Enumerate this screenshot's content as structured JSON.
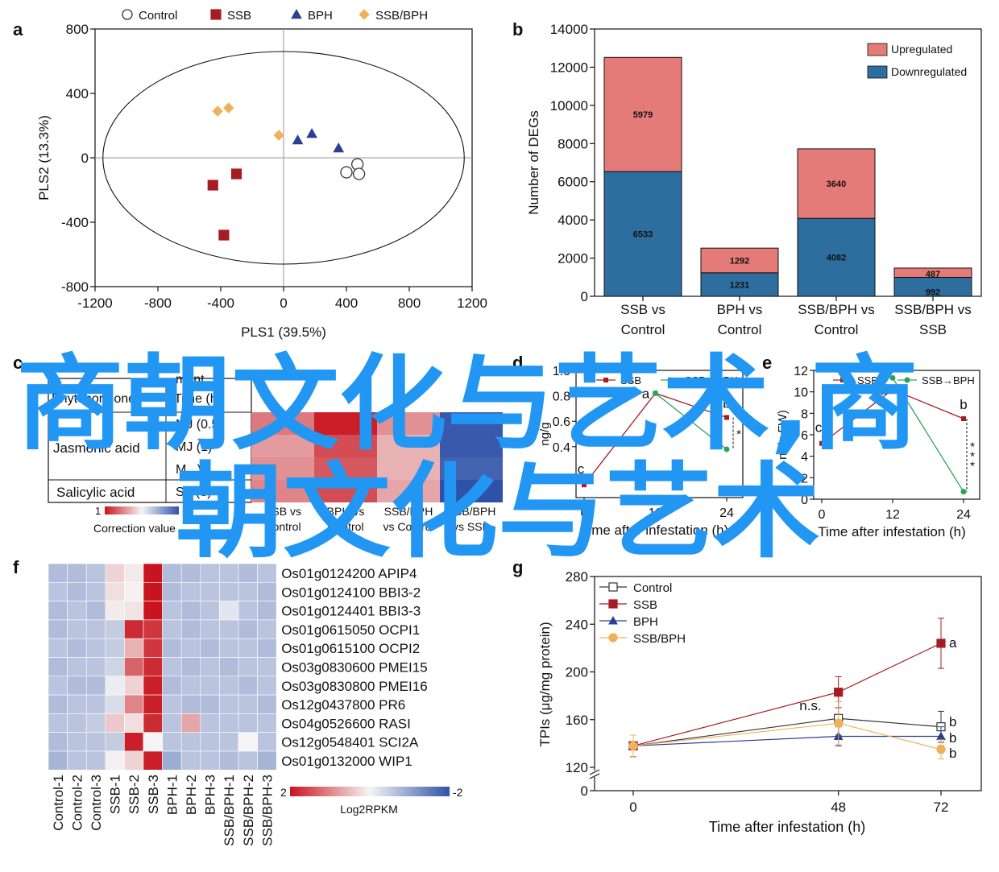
{
  "colors": {
    "control": "#333333",
    "ssb": "#a51d23",
    "bph": "#2b3f93",
    "ssbbph": "#f0b05a",
    "upregulated": "#e57b78",
    "downregulated": "#2e6e9e",
    "heat_high": "#c8141e",
    "heat_mid": "#f5f5f5",
    "heat_low": "#2f52a8",
    "watermark": "#2196f3"
  },
  "watermark": {
    "line1": "商朝文化与艺术,商",
    "line2": "朝文化与艺术"
  },
  "panels": {
    "a": "a",
    "b": "b",
    "c": "c",
    "d": "d",
    "e": "e",
    "f": "f",
    "g": "g"
  },
  "chart_data": [
    {
      "id": "a",
      "type": "scatter",
      "xlabel": "PLS1 (39.5%)",
      "ylabel": "PLS2 (13.3%)",
      "xlim": [
        -1200,
        1200
      ],
      "ylim": [
        -800,
        800
      ],
      "xticks": [
        "-1200",
        "-800",
        "-400",
        "0",
        "400",
        "800",
        "1200"
      ],
      "yticks": [
        "800",
        "400",
        "0",
        "-400",
        "-800"
      ],
      "legend_position": "top",
      "series": [
        {
          "name": "Control",
          "marker": "circle",
          "points": [
            [
              470,
              -40
            ],
            [
              400,
              -90
            ],
            [
              480,
              -100
            ]
          ]
        },
        {
          "name": "SSB",
          "marker": "square",
          "points": [
            [
              -300,
              -100
            ],
            [
              -450,
              -170
            ],
            [
              -380,
              -480
            ]
          ]
        },
        {
          "name": "BPH",
          "marker": "triangle",
          "points": [
            [
              90,
              110
            ],
            [
              180,
              150
            ],
            [
              350,
              60
            ]
          ]
        },
        {
          "name": "SSB/BPH",
          "marker": "diamond",
          "points": [
            [
              -420,
              290
            ],
            [
              -350,
              310
            ],
            [
              -30,
              140
            ]
          ]
        }
      ]
    },
    {
      "id": "b",
      "type": "bar",
      "ylabel": "Number of DEGs",
      "ylim": [
        0,
        14000
      ],
      "yticks": [
        "0",
        "2000",
        "4000",
        "6000",
        "8000",
        "10000",
        "12000",
        "14000"
      ],
      "categories": [
        [
          "SSB vs",
          "Control"
        ],
        [
          "BPH vs",
          "Control"
        ],
        [
          "SSB/BPH vs",
          "Control"
        ],
        [
          "SSB/BPH vs",
          "SSB"
        ]
      ],
      "legend_position": "top-right",
      "series": [
        {
          "name": "Upregulated",
          "values": [
            5979,
            1292,
            3640,
            487
          ],
          "labels": [
            "5979",
            "1292",
            "3640",
            "487"
          ]
        },
        {
          "name": "Downregulated",
          "values": [
            6533,
            1231,
            4082,
            992
          ],
          "labels": [
            "6533",
            "1231",
            "4082",
            "992"
          ]
        }
      ]
    },
    {
      "id": "c",
      "type": "heatmap",
      "table_rows": [
        {
          "hormone": "Jasmonic acid",
          "gene": "MJ (0.5)"
        },
        {
          "hormone": "",
          "gene": "MJ (1)"
        },
        {
          "hormone": "",
          "gene": "M...)"
        },
        {
          "hormone": "Salicylic acid",
          "gene": "SA (3)"
        }
      ],
      "header_fragments": [
        "ment",
        "Phytohormone",
        "Time (h)"
      ],
      "columns": [
        [
          "SSB vs",
          "Control"
        ],
        [
          "BPH vs",
          "Control"
        ],
        [
          "SSB/BPH",
          "vs Control"
        ],
        [
          "SSB/BPH",
          "vs SSB"
        ]
      ],
      "values": [
        [
          0.55,
          0.95,
          0.45,
          -0.95
        ],
        [
          0.4,
          0.75,
          0.3,
          -0.95
        ],
        [
          0.45,
          0.7,
          0.3,
          -0.9
        ],
        [
          0.5,
          0.75,
          0.35,
          -1.0
        ]
      ],
      "colorbar_labels": [
        "1",
        "-1"
      ],
      "colorbar_title": "Correction value"
    },
    {
      "id": "d",
      "type": "line",
      "xlabel": "Time after infestation (h)",
      "ylabel": "ng/g",
      "xlim": [
        0,
        24
      ],
      "ylim": [
        0,
        1.0
      ],
      "xticks": [
        "0",
        "12",
        "24"
      ],
      "yticks": [
        "1.0",
        "0.8",
        "0.6",
        "0.4"
      ],
      "x": [
        0,
        12,
        24
      ],
      "series": [
        {
          "name": "SSB",
          "values": [
            0.1,
            0.82,
            0.63
          ]
        },
        {
          "name": "SSB→BPH",
          "values": [
            null,
            0.82,
            0.38
          ]
        }
      ],
      "point_labels": [
        "c",
        "a",
        "b"
      ],
      "significance": "*"
    },
    {
      "id": "e",
      "type": "line",
      "xlabel": "Time after infestation (h)",
      "ylabel": "ng/g FW)",
      "xlim": [
        0,
        24
      ],
      "ylim": [
        0,
        12
      ],
      "xticks": [
        "0",
        "12",
        "24"
      ],
      "yticks": [
        "12",
        "10",
        "8",
        "6",
        "4",
        "2",
        "0"
      ],
      "x": [
        0,
        12,
        24
      ],
      "series": [
        {
          "name": "SSB",
          "values": [
            5.2,
            10.2,
            7.5
          ]
        },
        {
          "name": "SSB→BPH",
          "values": [
            null,
            11.3,
            0.7
          ]
        }
      ],
      "point_labels": [
        "c",
        "a",
        "b"
      ],
      "significance": "***"
    },
    {
      "id": "f",
      "type": "heatmap",
      "columns": [
        "Control-1",
        "Control-2",
        "Control-3",
        "SSB-1",
        "SSB-2",
        "SSB-3",
        "BPH-1",
        "BPH-2",
        "BPH-3",
        "SSB/BPH-1",
        "SSB/BPH-2",
        "SSB/BPH-3"
      ],
      "rows": [
        "Os01g0124200 APIP4",
        "Os01g0124100 BBI3-2",
        "Os01g0124401 BBI3-3",
        "Os01g0615050 OCPI1",
        "Os01g0615100 OCPI2",
        "Os03g0830600 PMEI15",
        "Os03g0830800 PMEI16",
        "Os12g0437800 PR6",
        "Os04g0526600 RASI",
        "Os12g0548401 SCI2A",
        "Os01g0132000 WIP1"
      ],
      "values": [
        [
          -0.7,
          -0.7,
          -0.6,
          0.3,
          0.1,
          2.0,
          -0.7,
          -0.7,
          -0.6,
          -0.6,
          -0.7,
          -0.6
        ],
        [
          -0.6,
          -0.7,
          -0.6,
          0.2,
          0.05,
          2.0,
          -0.7,
          -0.6,
          -0.6,
          -0.6,
          -0.6,
          -0.7
        ],
        [
          -0.7,
          -0.6,
          -0.7,
          0.1,
          0.15,
          2.0,
          -0.6,
          -0.7,
          -0.6,
          -0.2,
          -0.6,
          -0.7
        ],
        [
          -0.7,
          -0.6,
          -0.6,
          -0.5,
          1.8,
          1.7,
          -0.6,
          -0.7,
          -0.6,
          -0.6,
          -0.7,
          -0.6
        ],
        [
          -0.6,
          -0.7,
          -0.6,
          -0.5,
          0.6,
          1.7,
          -0.7,
          -0.6,
          -0.7,
          -0.6,
          -0.6,
          -0.7
        ],
        [
          -0.7,
          -0.6,
          -0.6,
          -0.4,
          1.3,
          1.8,
          -0.6,
          -0.7,
          -0.6,
          -0.7,
          -0.6,
          -0.6
        ],
        [
          -0.6,
          -0.7,
          -0.7,
          -0.1,
          0.3,
          1.9,
          -0.7,
          -0.6,
          -0.6,
          -0.6,
          -0.7,
          -0.6
        ],
        [
          -0.7,
          -0.6,
          -0.6,
          -0.3,
          1.0,
          1.9,
          -0.6,
          -0.7,
          -0.7,
          -0.6,
          -0.6,
          -0.7
        ],
        [
          -0.6,
          -0.6,
          -0.5,
          0.4,
          0.2,
          1.8,
          -0.6,
          0.7,
          -0.6,
          -0.6,
          -0.6,
          -0.6
        ],
        [
          -0.7,
          -0.6,
          -0.6,
          -0.5,
          1.9,
          0.0,
          -0.6,
          -0.6,
          -0.6,
          -0.6,
          0.0,
          -0.6
        ],
        [
          -0.8,
          -0.6,
          -0.6,
          0.05,
          0.3,
          1.9,
          -0.9,
          -0.6,
          -0.6,
          -0.7,
          -0.6,
          -0.8
        ]
      ],
      "colorbar_labels": [
        "2",
        "-2"
      ],
      "colorbar_title": "Log2RPKM"
    },
    {
      "id": "g",
      "type": "line",
      "xlabel": "Time after infestation (h)",
      "ylabel": "TPIs (μg/mg protein)",
      "xticks": [
        "0",
        "48",
        "72"
      ],
      "yticks": [
        "280",
        "240",
        "200",
        "160",
        "120",
        "0"
      ],
      "ylim": [
        120,
        280
      ],
      "axis_break": true,
      "x": [
        0,
        48,
        72
      ],
      "legend_position": "top-left",
      "series": [
        {
          "name": "Control",
          "values": [
            138,
            161,
            154
          ],
          "errors": [
            9,
            14,
            13
          ]
        },
        {
          "name": "SSB",
          "values": [
            138,
            183,
            224
          ],
          "errors": [
            9,
            13,
            21
          ]
        },
        {
          "name": "BPH",
          "values": [
            138,
            146,
            146
          ],
          "errors": [
            9,
            8,
            8
          ]
        },
        {
          "name": "SSB/BPH",
          "values": [
            138,
            157,
            135
          ],
          "errors": [
            9,
            18,
            8
          ]
        }
      ],
      "annotations": [
        "n.s.",
        "a",
        "b",
        "b",
        "b"
      ]
    }
  ]
}
